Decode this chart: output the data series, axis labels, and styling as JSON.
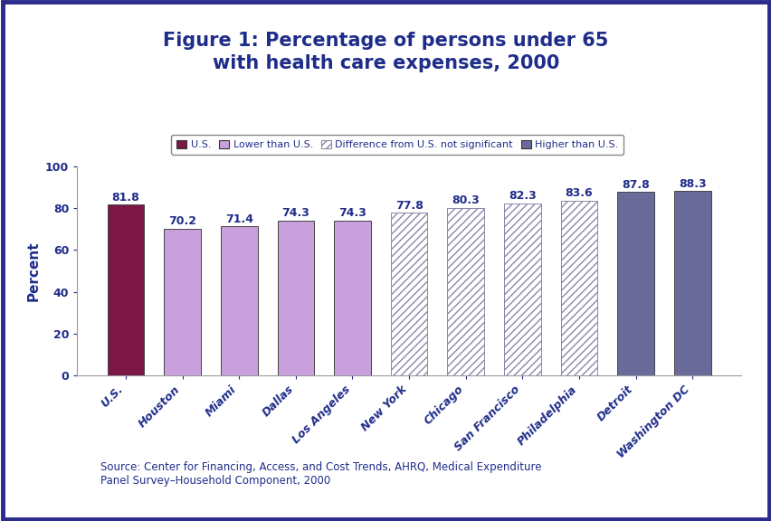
{
  "title": "Figure 1: Percentage of persons under 65\nwith health care expenses, 2000",
  "ylabel": "Percent",
  "categories": [
    "U.S.",
    "Houston",
    "Miami",
    "Dallas",
    "Los Angeles",
    "New York",
    "Chicago",
    "San Francisco",
    "Philadelphia",
    "Detroit",
    "Washington DC"
  ],
  "values": [
    81.8,
    70.2,
    71.4,
    74.3,
    74.3,
    77.8,
    80.3,
    82.3,
    83.6,
    87.8,
    88.3
  ],
  "bar_types": [
    "us",
    "lower",
    "lower",
    "lower",
    "lower",
    "diff",
    "diff",
    "diff",
    "diff",
    "higher",
    "higher"
  ],
  "colors": {
    "us": "#7B1645",
    "lower": "#C9A0DC",
    "diff_face": "#FFFFFF",
    "diff_hatch": "#8888AA",
    "higher": "#6B6B9B"
  },
  "hatch_pattern": "////",
  "legend_labels": [
    "U.S.",
    "Lower than U.S.",
    "Difference from U.S. not significant",
    "Higher than U.S."
  ],
  "legend_types": [
    "us",
    "lower",
    "diff",
    "higher"
  ],
  "ylim": [
    0,
    100
  ],
  "yticks": [
    0,
    20,
    40,
    60,
    80,
    100
  ],
  "source_text": "Source: Center for Financing, Access, and Cost Trends, AHRQ, Medical Expenditure\nPanel Survey–Household Component, 2000",
  "title_color": "#1F2D8A",
  "axis_color": "#1F2D8A",
  "label_color": "#1F2D8A",
  "tick_color": "#1F2D8A",
  "background_color": "#FFFFFF",
  "border_color": "#2B2B8C",
  "value_label_color": "#1F2D8A",
  "title_fontsize": 15,
  "ylabel_fontsize": 11,
  "tick_fontsize": 9,
  "value_fontsize": 9,
  "legend_fontsize": 8,
  "source_fontsize": 8.5,
  "bar_width": 0.65
}
